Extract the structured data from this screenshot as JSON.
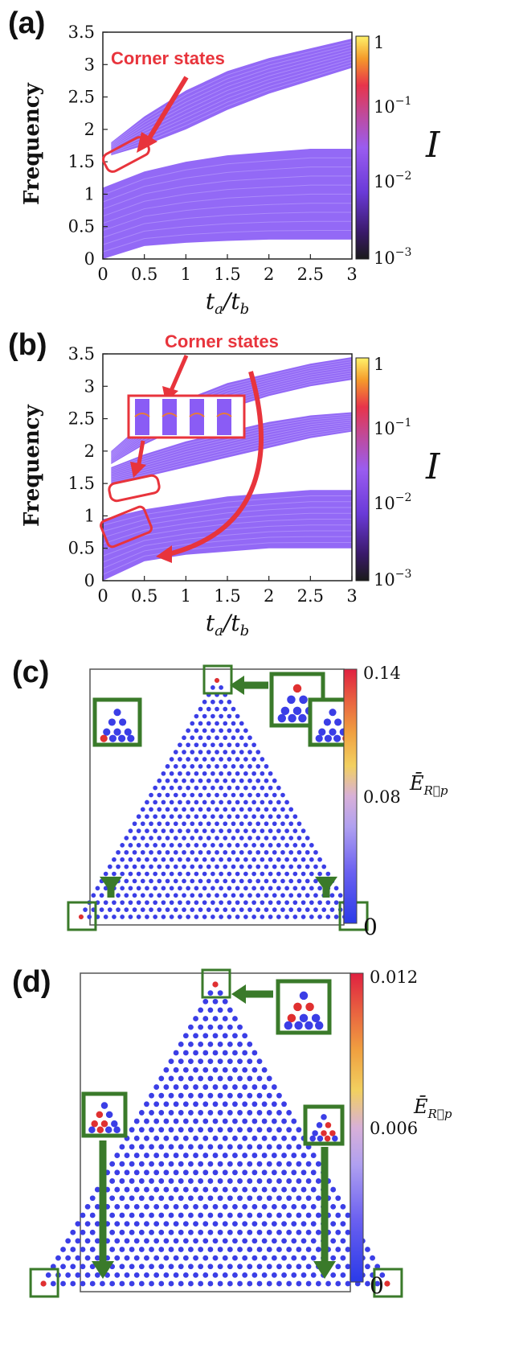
{
  "panels": {
    "a": {
      "label": "(a)",
      "annotation": "Corner states"
    },
    "b": {
      "label": "(b)",
      "annotation": "Corner states"
    },
    "c": {
      "label": "(c)"
    },
    "d": {
      "label": "(d)"
    }
  },
  "spectrum_axes": {
    "ylabel": "Frequency",
    "xlabel_main": "t",
    "xlabel_sub_a": "a",
    "xlabel_div": "/",
    "xlabel_sub_b": "b",
    "x_ticks": [
      "0",
      "0.5",
      "1",
      "1.5",
      "2",
      "2.5",
      "3"
    ],
    "y_ticks": [
      "0",
      "0.5",
      "1",
      "1.5",
      "2",
      "2.5",
      "3",
      "3.5"
    ],
    "colorbar_label": "I",
    "colorbar_ticks": [
      {
        "base": "1",
        "exp": ""
      },
      {
        "base": "10",
        "exp": "−1"
      },
      {
        "base": "10",
        "exp": "−2"
      },
      {
        "base": "10",
        "exp": "−3"
      }
    ]
  },
  "lattice_c": {
    "colorbar_ticks": [
      "0.14",
      "0.08",
      "0"
    ],
    "colorbar_label_main": "Ē",
    "colorbar_label_sub": "R⃗p"
  },
  "lattice_d": {
    "colorbar_ticks": [
      "0.012",
      "0.006",
      "0"
    ],
    "colorbar_label_main": "Ē",
    "colorbar_label_sub": "R⃗p"
  },
  "chart_data": [
    {
      "type": "area",
      "panel": "(a)",
      "xlabel": "t_a/t_b",
      "ylabel": "Frequency",
      "xlim": [
        0,
        3
      ],
      "ylim": [
        0,
        3.5
      ],
      "colorbar": {
        "label": "I",
        "scale": "log",
        "range": [
          0.001,
          1
        ]
      },
      "bands": [
        {
          "x": [
            0,
            0.5,
            1,
            1.5,
            2,
            2.5,
            3
          ],
          "lower": [
            0.0,
            0.2,
            0.25,
            0.28,
            0.3,
            0.3,
            0.3
          ],
          "upper": [
            1.1,
            1.35,
            1.5,
            1.6,
            1.65,
            1.7,
            1.7
          ]
        },
        {
          "x": [
            0.1,
            0.5,
            1,
            1.5,
            2,
            2.5,
            3
          ],
          "lower": [
            1.6,
            1.75,
            2.0,
            2.3,
            2.55,
            2.75,
            2.95
          ],
          "upper": [
            1.8,
            2.2,
            2.6,
            2.9,
            3.1,
            3.25,
            3.4
          ]
        }
      ],
      "annotation": "Corner states"
    },
    {
      "type": "area",
      "panel": "(b)",
      "xlabel": "t_a/t_b",
      "ylabel": "Frequency",
      "xlim": [
        0,
        3
      ],
      "ylim": [
        0,
        3.5
      ],
      "colorbar": {
        "label": "I",
        "scale": "log",
        "range": [
          0.001,
          1
        ]
      },
      "bands": [
        {
          "x": [
            0,
            0.5,
            1,
            1.5,
            2,
            2.5,
            3
          ],
          "lower": [
            0.0,
            0.3,
            0.4,
            0.45,
            0.5,
            0.5,
            0.5
          ],
          "upper": [
            0.95,
            1.1,
            1.2,
            1.3,
            1.35,
            1.4,
            1.4
          ]
        },
        {
          "x": [
            0.1,
            0.5,
            1,
            1.5,
            2,
            2.5,
            3
          ],
          "lower": [
            1.5,
            1.6,
            1.75,
            1.9,
            2.05,
            2.2,
            2.3
          ],
          "upper": [
            1.75,
            1.95,
            2.15,
            2.3,
            2.45,
            2.55,
            2.6
          ]
        },
        {
          "x": [
            0.1,
            0.5,
            1,
            1.5,
            2,
            2.5,
            3
          ],
          "lower": [
            1.8,
            2.1,
            2.4,
            2.65,
            2.85,
            3.0,
            3.1
          ],
          "upper": [
            2.0,
            2.45,
            2.8,
            3.05,
            3.2,
            3.35,
            3.45
          ]
        }
      ],
      "annotation": "Corner states"
    },
    {
      "type": "heatmap",
      "panel": "(c)",
      "colorbar": {
        "range": [
          0,
          0.14
        ],
        "ticks": [
          0.14,
          0.08,
          0
        ]
      }
    },
    {
      "type": "heatmap",
      "panel": "(d)",
      "colorbar": {
        "range": [
          0,
          0.012
        ],
        "ticks": [
          0.012,
          0.006,
          0
        ]
      }
    }
  ],
  "colors": {
    "band_purple": "#8a5cf5",
    "band_light": "#c9b3ff",
    "red_annotation": "#e8343c",
    "green_annotation": "#3a7a2a",
    "site_blue": "#3b3ee6",
    "site_red": "#e03030"
  }
}
